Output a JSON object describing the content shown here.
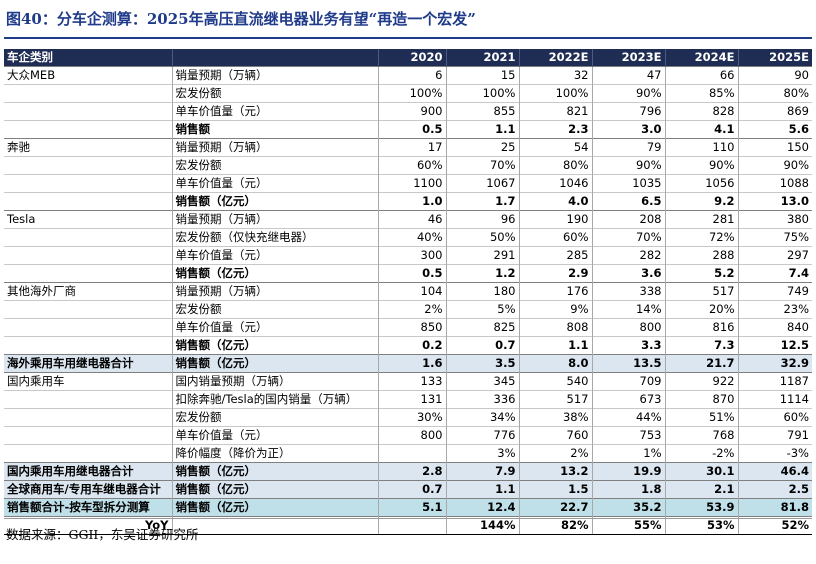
{
  "title": "图40：分车企测算：2025年高压直流继电器业务有望“再造一个宏发”",
  "columns": [
    "车企类别",
    "",
    "2020",
    "2021",
    "2022E",
    "2023E",
    "2024E",
    "2025E"
  ],
  "rows": [
    {
      "style": "group-start",
      "company": "大众MEB",
      "metric": "销量预期（万辆）",
      "values": [
        "6",
        "15",
        "32",
        "47",
        "66",
        "90"
      ]
    },
    {
      "style": "",
      "company": "",
      "metric": "宏发份额",
      "values": [
        "100%",
        "100%",
        "100%",
        "90%",
        "85%",
        "80%"
      ]
    },
    {
      "style": "",
      "company": "",
      "metric": "单车价值量（元）",
      "values": [
        "900",
        "855",
        "821",
        "796",
        "828",
        "869"
      ]
    },
    {
      "style": "bold",
      "company": "",
      "metric": "销售额",
      "values": [
        "0.5",
        "1.1",
        "2.3",
        "3.0",
        "4.1",
        "5.6"
      ]
    },
    {
      "style": "group-start",
      "company": "奔驰",
      "metric": "销量预期（万辆）",
      "values": [
        "17",
        "25",
        "54",
        "79",
        "110",
        "150"
      ]
    },
    {
      "style": "",
      "company": "",
      "metric": "宏发份额",
      "values": [
        "60%",
        "70%",
        "80%",
        "90%",
        "90%",
        "90%"
      ]
    },
    {
      "style": "",
      "company": "",
      "metric": "单车价值量（元）",
      "values": [
        "1100",
        "1067",
        "1046",
        "1035",
        "1056",
        "1088"
      ]
    },
    {
      "style": "bold",
      "company": "",
      "metric": "销售额（亿元）",
      "values": [
        "1.0",
        "1.7",
        "4.0",
        "6.5",
        "9.2",
        "13.0"
      ]
    },
    {
      "style": "group-start",
      "company": "Tesla",
      "metric": "销量预期（万辆）",
      "values": [
        "46",
        "96",
        "190",
        "208",
        "281",
        "380"
      ]
    },
    {
      "style": "",
      "company": "",
      "metric": "宏发份额（仅快充继电器）",
      "values": [
        "40%",
        "50%",
        "60%",
        "70%",
        "72%",
        "75%"
      ]
    },
    {
      "style": "",
      "company": "",
      "metric": "单车价值量（元）",
      "values": [
        "300",
        "291",
        "285",
        "282",
        "288",
        "297"
      ]
    },
    {
      "style": "bold",
      "company": "",
      "metric": "销售额（亿元）",
      "values": [
        "0.5",
        "1.2",
        "2.9",
        "3.6",
        "5.2",
        "7.4"
      ]
    },
    {
      "style": "group-start",
      "company": "其他海外厂商",
      "metric": "销量预期（万辆）",
      "values": [
        "104",
        "180",
        "176",
        "338",
        "517",
        "749"
      ]
    },
    {
      "style": "",
      "company": "",
      "metric": "宏发份额",
      "values": [
        "2%",
        "5%",
        "9%",
        "14%",
        "20%",
        "23%"
      ]
    },
    {
      "style": "",
      "company": "",
      "metric": "单车价值量（元）",
      "values": [
        "850",
        "825",
        "808",
        "800",
        "816",
        "840"
      ]
    },
    {
      "style": "bold",
      "company": "",
      "metric": "销售额（亿元）",
      "values": [
        "0.2",
        "0.7",
        "1.1",
        "3.3",
        "7.3",
        "12.5"
      ]
    },
    {
      "style": "blue",
      "company": "海外乘用车用继电器合计",
      "metric": "销售额（亿元）",
      "values": [
        "1.6",
        "3.5",
        "8.0",
        "13.5",
        "21.7",
        "32.9"
      ]
    },
    {
      "style": "group-start",
      "company": "国内乘用车",
      "metric": "国内销量预期（万辆）",
      "values": [
        "133",
        "345",
        "540",
        "709",
        "922",
        "1187"
      ]
    },
    {
      "style": "",
      "company": "",
      "metric": "扣除奔驰/Tesla的国内销量（万辆）",
      "values": [
        "131",
        "336",
        "517",
        "673",
        "870",
        "1114"
      ]
    },
    {
      "style": "",
      "company": "",
      "metric": "宏发份额",
      "values": [
        "30%",
        "34%",
        "38%",
        "44%",
        "51%",
        "60%"
      ]
    },
    {
      "style": "",
      "company": "",
      "metric": "单车价值量（元）",
      "values": [
        "800",
        "776",
        "760",
        "753",
        "768",
        "791"
      ]
    },
    {
      "style": "",
      "company": "",
      "metric": "降价幅度（降价为正）",
      "values": [
        "",
        "3%",
        "2%",
        "1%",
        "-2%",
        "-3%"
      ]
    },
    {
      "style": "blue",
      "company": "国内乘用车用继电器合计",
      "metric": "销售额（亿元）",
      "values": [
        "2.8",
        "7.9",
        "13.2",
        "19.9",
        "30.1",
        "46.4"
      ]
    },
    {
      "style": "blue",
      "company": "全球商用车/专用车继电器合计",
      "metric": "销售额（亿元）",
      "values": [
        "0.7",
        "1.1",
        "1.5",
        "1.8",
        "2.1",
        "2.5"
      ]
    },
    {
      "style": "teal",
      "company": "销售额合计-按车型拆分测算",
      "metric": "销售额（亿元）",
      "values": [
        "5.1",
        "12.4",
        "22.7",
        "35.2",
        "53.9",
        "81.8"
      ]
    },
    {
      "style": "yoy",
      "company": "YoY",
      "metric": "",
      "values": [
        "",
        "144%",
        "82%",
        "55%",
        "53%",
        "52%"
      ]
    }
  ],
  "source": "数据来源：GGII，东吴证券研究所"
}
